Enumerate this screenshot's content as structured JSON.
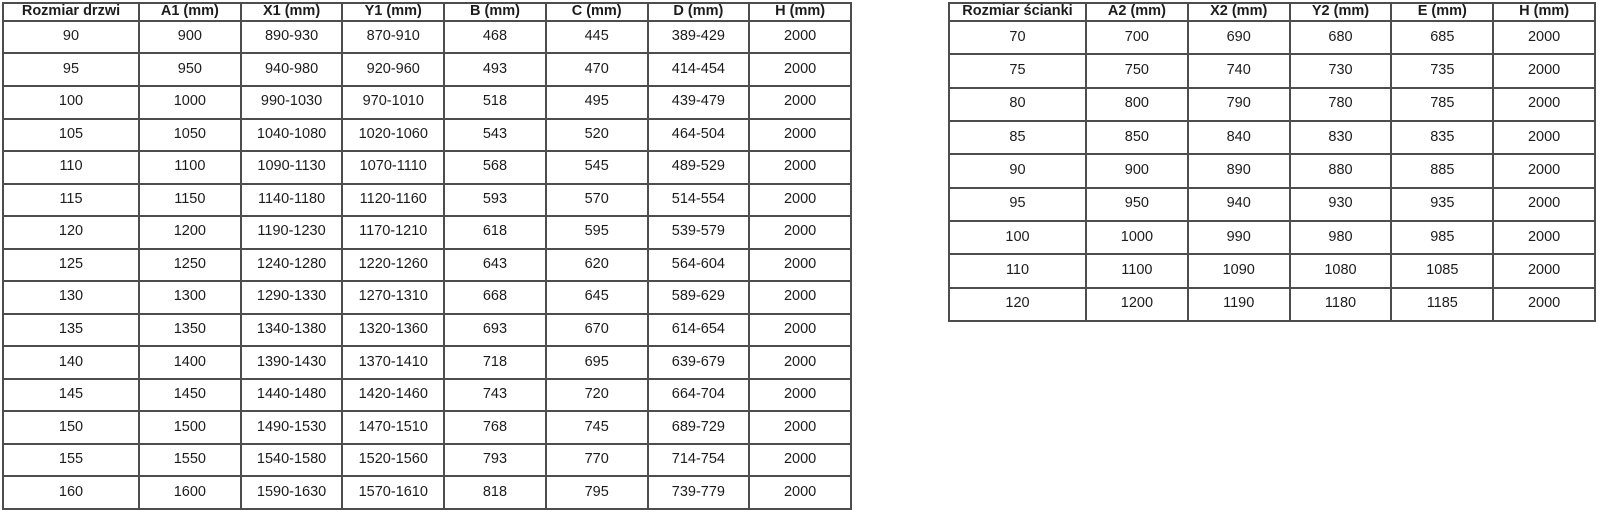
{
  "colors": {
    "background": "#ffffff",
    "border": "#4d4d4d",
    "text": "#1c1c1c"
  },
  "tables": {
    "doors": {
      "headers": [
        "Rozmiar drzwi",
        "A1 (mm)",
        "X1 (mm)",
        "Y1 (mm)",
        "B (mm)",
        "C (mm)",
        "D (mm)",
        "H (mm)"
      ],
      "rows": [
        [
          "90",
          "900",
          "890-930",
          "870-910",
          "468",
          "445",
          "389-429",
          "2000"
        ],
        [
          "95",
          "950",
          "940-980",
          "920-960",
          "493",
          "470",
          "414-454",
          "2000"
        ],
        [
          "100",
          "1000",
          "990-1030",
          "970-1010",
          "518",
          "495",
          "439-479",
          "2000"
        ],
        [
          "105",
          "1050",
          "1040-1080",
          "1020-1060",
          "543",
          "520",
          "464-504",
          "2000"
        ],
        [
          "110",
          "1100",
          "1090-1130",
          "1070-1110",
          "568",
          "545",
          "489-529",
          "2000"
        ],
        [
          "115",
          "1150",
          "1140-1180",
          "1120-1160",
          "593",
          "570",
          "514-554",
          "2000"
        ],
        [
          "120",
          "1200",
          "1190-1230",
          "1170-1210",
          "618",
          "595",
          "539-579",
          "2000"
        ],
        [
          "125",
          "1250",
          "1240-1280",
          "1220-1260",
          "643",
          "620",
          "564-604",
          "2000"
        ],
        [
          "130",
          "1300",
          "1290-1330",
          "1270-1310",
          "668",
          "645",
          "589-629",
          "2000"
        ],
        [
          "135",
          "1350",
          "1340-1380",
          "1320-1360",
          "693",
          "670",
          "614-654",
          "2000"
        ],
        [
          "140",
          "1400",
          "1390-1430",
          "1370-1410",
          "718",
          "695",
          "639-679",
          "2000"
        ],
        [
          "145",
          "1450",
          "1440-1480",
          "1420-1460",
          "743",
          "720",
          "664-704",
          "2000"
        ],
        [
          "150",
          "1500",
          "1490-1530",
          "1470-1510",
          "768",
          "745",
          "689-729",
          "2000"
        ],
        [
          "155",
          "1550",
          "1540-1580",
          "1520-1560",
          "793",
          "770",
          "714-754",
          "2000"
        ],
        [
          "160",
          "1600",
          "1590-1630",
          "1570-1610",
          "818",
          "795",
          "739-779",
          "2000"
        ]
      ]
    },
    "walls": {
      "headers": [
        "Rozmiar ścianki",
        "A2 (mm)",
        "X2 (mm)",
        "Y2 (mm)",
        "E (mm)",
        "H (mm)"
      ],
      "rows": [
        [
          "70",
          "700",
          "690",
          "680",
          "685",
          "2000"
        ],
        [
          "75",
          "750",
          "740",
          "730",
          "735",
          "2000"
        ],
        [
          "80",
          "800",
          "790",
          "780",
          "785",
          "2000"
        ],
        [
          "85",
          "850",
          "840",
          "830",
          "835",
          "2000"
        ],
        [
          "90",
          "900",
          "890",
          "880",
          "885",
          "2000"
        ],
        [
          "95",
          "950",
          "940",
          "930",
          "935",
          "2000"
        ],
        [
          "100",
          "1000",
          "990",
          "980",
          "985",
          "2000"
        ],
        [
          "110",
          "1100",
          "1090",
          "1080",
          "1085",
          "2000"
        ],
        [
          "120",
          "1200",
          "1190",
          "1180",
          "1185",
          "2000"
        ]
      ]
    }
  }
}
